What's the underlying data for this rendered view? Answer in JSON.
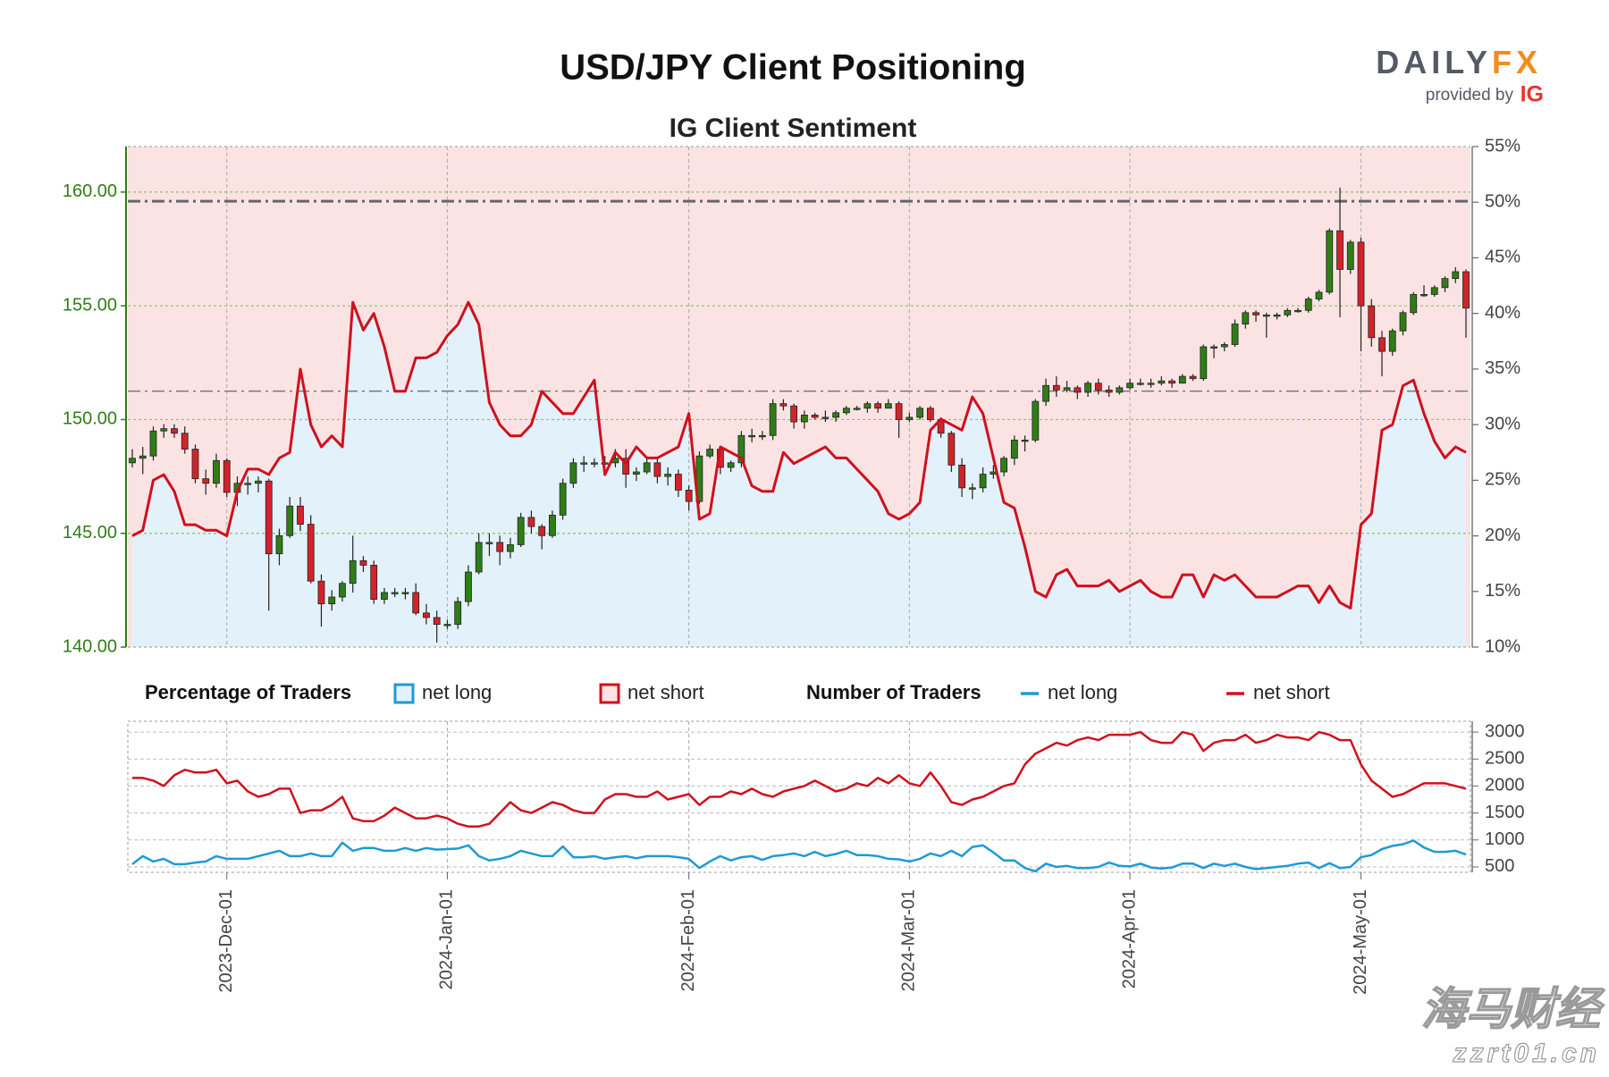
{
  "chart_data": {
    "type": "candlestick",
    "title": "USD/JPY Client Positioning",
    "subtitle": "IG Client Sentiment",
    "categories": [
      null,
      null,
      null,
      null,
      null,
      null,
      null,
      null,
      null,
      "2023-Dec-01",
      null,
      null,
      null,
      null,
      null,
      null,
      null,
      null,
      null,
      null,
      null,
      null,
      null,
      null,
      null,
      null,
      null,
      null,
      null,
      null,
      "2024-Jan-01",
      null,
      null,
      null,
      null,
      null,
      null,
      null,
      null,
      null,
      null,
      null,
      null,
      null,
      null,
      null,
      null,
      null,
      null,
      null,
      null,
      null,
      null,
      "2024-Feb-01",
      null,
      null,
      null,
      null,
      null,
      null,
      null,
      null,
      null,
      null,
      null,
      null,
      null,
      null,
      null,
      null,
      null,
      null,
      null,
      null,
      "2024-Mar-01",
      null,
      null,
      null,
      null,
      null,
      null,
      null,
      null,
      null,
      null,
      null,
      null,
      null,
      null,
      null,
      null,
      null,
      null,
      null,
      null,
      "2024-Apr-01",
      null,
      null,
      null,
      null,
      null,
      null,
      null,
      null,
      null,
      null,
      null,
      null,
      null,
      null,
      null,
      null,
      null,
      null,
      null,
      null,
      null,
      "2024-May-01",
      null,
      null,
      null,
      null,
      null,
      null,
      null,
      null,
      null,
      null
    ],
    "candles": [
      [
        148.1,
        148.7,
        147.9,
        148.3
      ],
      [
        148.3,
        148.8,
        147.6,
        148.4
      ],
      [
        148.4,
        149.7,
        148.2,
        149.5
      ],
      [
        149.5,
        149.8,
        149.2,
        149.6
      ],
      [
        149.6,
        149.8,
        149.2,
        149.4
      ],
      [
        149.4,
        149.7,
        148.5,
        148.7
      ],
      [
        148.7,
        148.9,
        147.2,
        147.4
      ],
      [
        147.4,
        147.8,
        146.7,
        147.2
      ],
      [
        147.2,
        148.5,
        147.0,
        148.2
      ],
      [
        148.2,
        148.3,
        146.6,
        146.8
      ],
      [
        146.8,
        147.5,
        146.2,
        147.2
      ],
      [
        147.2,
        147.5,
        146.7,
        147.2
      ],
      [
        147.2,
        147.5,
        146.8,
        147.3
      ],
      [
        147.3,
        147.4,
        141.6,
        144.1
      ],
      [
        144.1,
        145.2,
        143.6,
        144.9
      ],
      [
        144.9,
        146.6,
        144.8,
        146.2
      ],
      [
        146.2,
        146.6,
        145.1,
        145.4
      ],
      [
        145.4,
        145.8,
        142.8,
        142.9
      ],
      [
        142.9,
        143.2,
        140.9,
        141.9
      ],
      [
        141.9,
        142.5,
        141.6,
        142.2
      ],
      [
        142.2,
        142.9,
        142.0,
        142.8
      ],
      [
        142.8,
        144.9,
        142.4,
        143.8
      ],
      [
        143.8,
        144.0,
        143.3,
        143.6
      ],
      [
        143.6,
        143.8,
        141.9,
        142.1
      ],
      [
        142.1,
        142.6,
        141.9,
        142.4
      ],
      [
        142.4,
        142.6,
        142.2,
        142.4
      ],
      [
        142.4,
        142.6,
        142.1,
        142.4
      ],
      [
        142.4,
        142.8,
        141.4,
        141.5
      ],
      [
        141.5,
        141.9,
        141.0,
        141.3
      ],
      [
        141.3,
        141.6,
        140.2,
        141.0
      ],
      [
        141.0,
        141.2,
        140.8,
        141.0
      ],
      [
        141.0,
        142.2,
        140.8,
        142.0
      ],
      [
        142.0,
        143.6,
        141.8,
        143.3
      ],
      [
        143.3,
        145.0,
        143.2,
        144.6
      ],
      [
        144.6,
        145.0,
        144.0,
        144.6
      ],
      [
        144.6,
        144.9,
        143.6,
        144.2
      ],
      [
        144.2,
        144.8,
        143.9,
        144.5
      ],
      [
        144.5,
        145.9,
        144.4,
        145.7
      ],
      [
        145.7,
        146.0,
        145.0,
        145.3
      ],
      [
        145.3,
        145.4,
        144.3,
        144.9
      ],
      [
        144.9,
        146.0,
        144.8,
        145.8
      ],
      [
        145.8,
        147.4,
        145.6,
        147.2
      ],
      [
        147.2,
        148.3,
        147.0,
        148.1
      ],
      [
        148.1,
        148.4,
        147.7,
        148.1
      ],
      [
        148.1,
        148.3,
        147.9,
        148.1
      ],
      [
        148.1,
        148.4,
        147.6,
        148.1
      ],
      [
        148.1,
        148.7,
        147.9,
        148.3
      ],
      [
        148.3,
        148.7,
        147.0,
        147.6
      ],
      [
        147.6,
        147.9,
        147.3,
        147.7
      ],
      [
        147.7,
        148.3,
        147.6,
        148.1
      ],
      [
        148.1,
        148.3,
        147.2,
        147.5
      ],
      [
        147.5,
        147.9,
        147.1,
        147.6
      ],
      [
        147.6,
        147.8,
        146.6,
        146.9
      ],
      [
        146.9,
        147.1,
        146.0,
        146.4
      ],
      [
        146.4,
        148.6,
        146.3,
        148.4
      ],
      [
        148.4,
        148.9,
        148.3,
        148.7
      ],
      [
        148.7,
        148.8,
        147.6,
        147.9
      ],
      [
        147.9,
        148.2,
        147.7,
        148.1
      ],
      [
        148.1,
        149.5,
        147.9,
        149.3
      ],
      [
        149.3,
        149.6,
        149.0,
        149.3
      ],
      [
        149.3,
        149.5,
        149.1,
        149.3
      ],
      [
        149.3,
        150.9,
        149.1,
        150.7
      ],
      [
        150.7,
        150.9,
        150.4,
        150.6
      ],
      [
        150.6,
        150.7,
        149.6,
        149.9
      ],
      [
        149.9,
        150.4,
        149.6,
        150.2
      ],
      [
        150.2,
        150.3,
        150.0,
        150.1
      ],
      [
        150.1,
        150.4,
        149.9,
        150.1
      ],
      [
        150.1,
        150.4,
        149.9,
        150.3
      ],
      [
        150.3,
        150.6,
        150.2,
        150.5
      ],
      [
        150.5,
        150.6,
        150.4,
        150.5
      ],
      [
        150.5,
        150.8,
        150.3,
        150.7
      ],
      [
        150.7,
        150.8,
        150.3,
        150.5
      ],
      [
        150.5,
        150.9,
        150.5,
        150.7
      ],
      [
        150.7,
        150.8,
        149.2,
        150.0
      ],
      [
        150.0,
        150.3,
        149.9,
        150.1
      ],
      [
        150.1,
        150.6,
        150.0,
        150.5
      ],
      [
        150.5,
        150.6,
        149.9,
        150.0
      ],
      [
        150.0,
        150.1,
        149.2,
        149.4
      ],
      [
        149.4,
        149.5,
        147.7,
        148.0
      ],
      [
        148.0,
        148.3,
        146.6,
        147.0
      ],
      [
        147.0,
        147.2,
        146.5,
        147.0
      ],
      [
        147.0,
        147.9,
        146.8,
        147.6
      ],
      [
        147.6,
        148.0,
        147.4,
        147.7
      ],
      [
        147.7,
        148.4,
        147.5,
        148.3
      ],
      [
        148.3,
        149.3,
        148.0,
        149.1
      ],
      [
        149.1,
        149.3,
        148.6,
        149.1
      ],
      [
        149.1,
        150.9,
        149.0,
        150.8
      ],
      [
        150.8,
        151.8,
        150.6,
        151.5
      ],
      [
        151.5,
        151.9,
        151.0,
        151.3
      ],
      [
        151.3,
        151.7,
        151.2,
        151.4
      ],
      [
        151.4,
        151.5,
        150.9,
        151.2
      ],
      [
        151.2,
        151.7,
        151.0,
        151.6
      ],
      [
        151.6,
        151.8,
        151.1,
        151.3
      ],
      [
        151.3,
        151.5,
        151.0,
        151.2
      ],
      [
        151.2,
        151.5,
        151.1,
        151.4
      ],
      [
        151.4,
        151.8,
        151.3,
        151.6
      ],
      [
        151.6,
        151.8,
        151.5,
        151.6
      ],
      [
        151.6,
        151.8,
        151.4,
        151.6
      ],
      [
        151.6,
        151.9,
        151.5,
        151.7
      ],
      [
        151.7,
        151.8,
        151.4,
        151.6
      ],
      [
        151.6,
        152.0,
        151.6,
        151.9
      ],
      [
        151.9,
        152.0,
        151.7,
        151.8
      ],
      [
        151.8,
        153.3,
        151.7,
        153.2
      ],
      [
        153.2,
        153.3,
        152.7,
        153.2
      ],
      [
        153.2,
        153.4,
        153.0,
        153.3
      ],
      [
        153.3,
        154.4,
        153.2,
        154.2
      ],
      [
        154.2,
        154.8,
        154.0,
        154.7
      ],
      [
        154.7,
        154.8,
        154.3,
        154.6
      ],
      [
        154.6,
        154.7,
        153.6,
        154.6
      ],
      [
        154.6,
        154.7,
        154.4,
        154.6
      ],
      [
        154.6,
        154.9,
        154.5,
        154.8
      ],
      [
        154.8,
        154.9,
        154.7,
        154.8
      ],
      [
        154.8,
        155.4,
        154.7,
        155.3
      ],
      [
        155.3,
        155.7,
        155.2,
        155.6
      ],
      [
        155.6,
        158.4,
        155.5,
        158.3
      ],
      [
        158.3,
        160.2,
        154.5,
        156.6
      ],
      [
        156.6,
        157.9,
        156.4,
        157.8
      ],
      [
        157.8,
        158.0,
        153.0,
        155.0
      ],
      [
        155.0,
        155.3,
        153.2,
        153.6
      ],
      [
        153.6,
        153.9,
        151.9,
        153.0
      ],
      [
        153.0,
        154.0,
        152.8,
        153.9
      ],
      [
        153.9,
        154.8,
        153.7,
        154.7
      ],
      [
        154.7,
        155.6,
        154.6,
        155.5
      ],
      [
        155.5,
        155.9,
        155.4,
        155.5
      ],
      [
        155.5,
        155.9,
        155.4,
        155.8
      ],
      [
        155.8,
        156.3,
        155.6,
        156.2
      ],
      [
        156.2,
        156.7,
        156.0,
        156.5
      ],
      [
        156.5,
        156.6,
        153.6,
        154.9
      ]
    ],
    "up_color": "#2f7d17",
    "down_color": "#d3222a",
    "ylim": [
      140,
      162
    ],
    "yticks": [
      {
        "value": 140,
        "label": "140.00"
      },
      {
        "value": 145,
        "label": "145.00"
      },
      {
        "value": 150,
        "label": "150.00"
      },
      {
        "value": 155,
        "label": "155.00"
      },
      {
        "value": 160,
        "label": "160.00"
      }
    ],
    "y2lim": [
      10,
      55
    ],
    "y2ticks": [
      {
        "value": 10,
        "label": "10%"
      },
      {
        "value": 15,
        "label": "15%"
      },
      {
        "value": 20,
        "label": "20%"
      },
      {
        "value": 25,
        "label": "25%"
      },
      {
        "value": 30,
        "label": "30%"
      },
      {
        "value": 35,
        "label": "35%"
      },
      {
        "value": 40,
        "label": "40%"
      },
      {
        "value": 45,
        "label": "45%"
      },
      {
        "value": 50,
        "label": "50%"
      },
      {
        "value": 55,
        "label": "55%"
      }
    ],
    "hlines": [
      159.6,
      151.25
    ],
    "grid": true,
    "sentiment": {
      "name": "net long",
      "axis": "y2",
      "color": "#d0101e",
      "fill": "#e3f1fa",
      "background": "#fbe3e3",
      "values": [
        20,
        20.5,
        25,
        25.5,
        24,
        21,
        21,
        20.5,
        20.5,
        20,
        24,
        26,
        26,
        25.5,
        27,
        27.5,
        35,
        30,
        28,
        29,
        28,
        41,
        38.5,
        40,
        37,
        33,
        33,
        36,
        36,
        36.5,
        38,
        39,
        41,
        39,
        32,
        30,
        29,
        29,
        30,
        33,
        32,
        31,
        31,
        32.5,
        34,
        25.5,
        27.5,
        26.5,
        28,
        27,
        27,
        27.5,
        28,
        31,
        21.5,
        22,
        28,
        27.5,
        27,
        24.5,
        24,
        24,
        27.5,
        26.5,
        27,
        27.5,
        28,
        27,
        27,
        26,
        25,
        24,
        22,
        21.5,
        22,
        23,
        29.5,
        30.5,
        30,
        29.5,
        32.5,
        31,
        27,
        23,
        22.5,
        19,
        15,
        14.5,
        16.5,
        17,
        15.5,
        15.5,
        15.5,
        16,
        15,
        15.5,
        16,
        15,
        14.5,
        14.5,
        16.5,
        16.5,
        14.5,
        16.5,
        16,
        16.5,
        15.5,
        14.5,
        14.5,
        14.5,
        15,
        15.5,
        15.5,
        14,
        15.5,
        14,
        13.5,
        21,
        22,
        29.5,
        30,
        33.5,
        34,
        31,
        28.5,
        27,
        28,
        27.5
      ]
    },
    "percentage_legend": {
      "title": "Percentage of Traders",
      "entries": [
        {
          "name": "net long",
          "color": "#1f9ad6"
        },
        {
          "name": "net short",
          "color": "#d0101e"
        }
      ]
    },
    "counts": {
      "type": "line",
      "title": "Number of Traders",
      "ylim": [
        400,
        3200
      ],
      "yticks": [
        500,
        1000,
        1500,
        2000,
        2500,
        3000
      ],
      "series": [
        {
          "name": "net long",
          "color": "#1f9ad6",
          "values": [
            550,
            700,
            600,
            650,
            550,
            550,
            580,
            600,
            700,
            650,
            650,
            650,
            700,
            750,
            800,
            700,
            700,
            750,
            700,
            700,
            950,
            800,
            850,
            850,
            800,
            800,
            850,
            800,
            850,
            820,
            830,
            840,
            900,
            700,
            620,
            650,
            700,
            800,
            750,
            700,
            700,
            880,
            680,
            680,
            700,
            650,
            680,
            700,
            660,
            700,
            700,
            700,
            680,
            650,
            480,
            600,
            700,
            620,
            680,
            700,
            630,
            700,
            720,
            750,
            700,
            780,
            700,
            740,
            800,
            720,
            720,
            700,
            650,
            640,
            600,
            650,
            750,
            700,
            800,
            700,
            870,
            900,
            770,
            620,
            620,
            480,
            420,
            560,
            500,
            520,
            480,
            480,
            500,
            580,
            520,
            510,
            560,
            490,
            470,
            490,
            560,
            560,
            480,
            560,
            520,
            560,
            500,
            460,
            480,
            500,
            520,
            560,
            580,
            480,
            570,
            480,
            500,
            680,
            720,
            830,
            890,
            920,
            990,
            860,
            780,
            780,
            800,
            730
          ]
        },
        {
          "name": "net short",
          "color": "#d0101e",
          "values": [
            2150,
            2150,
            2100,
            2000,
            2200,
            2300,
            2250,
            2250,
            2300,
            2050,
            2100,
            1900,
            1800,
            1850,
            1950,
            1950,
            1500,
            1550,
            1550,
            1650,
            1800,
            1400,
            1350,
            1350,
            1450,
            1600,
            1500,
            1400,
            1400,
            1450,
            1400,
            1300,
            1250,
            1250,
            1300,
            1500,
            1700,
            1550,
            1500,
            1600,
            1700,
            1650,
            1550,
            1500,
            1500,
            1750,
            1850,
            1850,
            1800,
            1800,
            1900,
            1750,
            1800,
            1850,
            1650,
            1800,
            1800,
            1900,
            1850,
            1950,
            1850,
            1800,
            1900,
            1950,
            2000,
            2100,
            2000,
            1900,
            1950,
            2050,
            2000,
            2150,
            2050,
            2200,
            2050,
            2000,
            2250,
            2000,
            1700,
            1650,
            1750,
            1800,
            1900,
            2000,
            2050,
            2400,
            2600,
            2700,
            2800,
            2750,
            2850,
            2900,
            2850,
            2950,
            2950,
            2950,
            3000,
            2850,
            2800,
            2800,
            3000,
            2950,
            2650,
            2800,
            2850,
            2850,
            2950,
            2800,
            2850,
            2950,
            2900,
            2900,
            2850,
            3000,
            2950,
            2850,
            2850,
            2400,
            2100,
            1950,
            1800,
            1850,
            1950,
            2050,
            2050,
            2050,
            2000,
            1950
          ]
        }
      ]
    },
    "logo": {
      "brand": "DAILY",
      "brand_accent": "FX",
      "byline": "provided by",
      "mark": "IG"
    },
    "watermark": {
      "text": "海马财经",
      "url": "zzrt01.cn"
    }
  }
}
